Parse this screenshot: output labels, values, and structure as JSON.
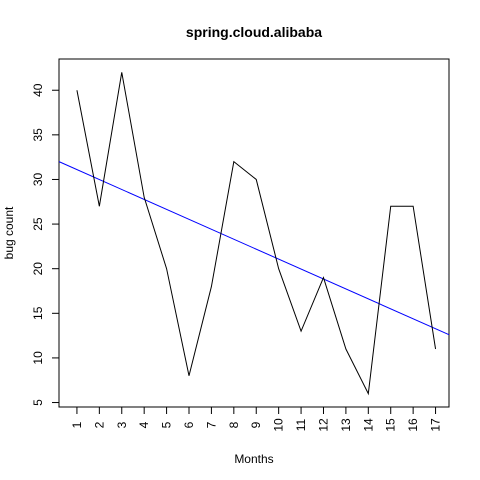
{
  "chart_data": {
    "type": "line",
    "title": "spring.cloud.alibaba",
    "xlabel": "Months",
    "ylabel": "bug count",
    "x": [
      1,
      2,
      3,
      4,
      5,
      6,
      7,
      8,
      9,
      10,
      11,
      12,
      13,
      14,
      15,
      16,
      17
    ],
    "xticks": [
      "1",
      "2",
      "3",
      "4",
      "5",
      "6",
      "7",
      "8",
      "9",
      "10",
      "11",
      "12",
      "13",
      "14",
      "15",
      "16",
      "17"
    ],
    "yticks": [
      "5",
      "10",
      "15",
      "20",
      "25",
      "30",
      "35",
      "40"
    ],
    "xlim": [
      0.2,
      17.6
    ],
    "ylim": [
      4.5,
      43.5
    ],
    "series": [
      {
        "values": [
          40,
          27,
          42,
          28,
          20,
          8,
          18,
          32,
          30,
          20,
          13,
          19,
          11,
          6,
          27,
          27,
          11
        ],
        "color": "#000000"
      }
    ],
    "trendline": {
      "x": [
        0.2,
        17.6
      ],
      "y": [
        32.0,
        12.6
      ],
      "color": "#0000ff"
    },
    "grid": false,
    "legend": "none"
  }
}
